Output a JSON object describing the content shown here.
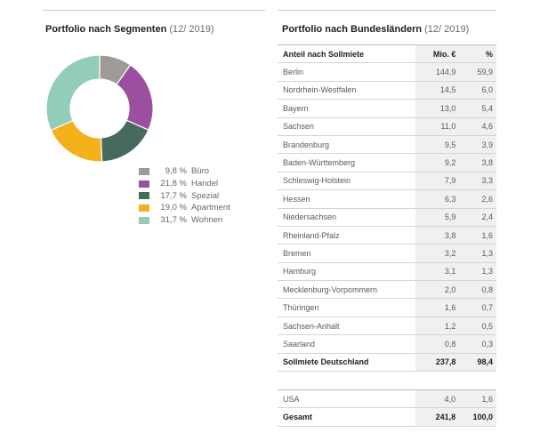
{
  "left_panel": {
    "title": "Portfolio nach Segmenten",
    "date": "(12/ 2019)"
  },
  "chart_data": {
    "type": "pie",
    "variant": "donut",
    "title": "Portfolio nach Segmenten (12/ 2019)",
    "start": "top",
    "direction": "clockwise",
    "legend_placement": "bottom-right",
    "slices": [
      {
        "label": "Büro",
        "value": 9.8,
        "display": "9,8 %",
        "color": "#a09a96"
      },
      {
        "label": "Handel",
        "value": 21.8,
        "display": "21,8 %",
        "color": "#9b4f9f"
      },
      {
        "label": "Spezial",
        "value": 17.7,
        "display": "17,7 %",
        "color": "#466b5c"
      },
      {
        "label": "Apartment",
        "value": 19.0,
        "display": "19,0 %",
        "color": "#f3b21b"
      },
      {
        "label": "Wohnen",
        "value": 31.7,
        "display": "31,7 %",
        "color": "#93cdb8"
      }
    ]
  },
  "right_panel": {
    "title": "Portfolio nach Bundesländern",
    "date": "(12/ 2019)",
    "header": {
      "name": "Anteil nach Sollmiete",
      "mio": "Mio. €",
      "pct": "%"
    },
    "rows": [
      {
        "name": "Berlin",
        "mio": "144,9",
        "pct": "59,9"
      },
      {
        "name": "Nordrhein-Westfalen",
        "mio": "14,5",
        "pct": "6,0"
      },
      {
        "name": "Bayern",
        "mio": "13,0",
        "pct": "5,4"
      },
      {
        "name": "Sachsen",
        "mio": "11,0",
        "pct": "4,6"
      },
      {
        "name": "Brandenburg",
        "mio": "9,5",
        "pct": "3,9"
      },
      {
        "name": "Baden-Württemberg",
        "mio": "9,2",
        "pct": "3,8"
      },
      {
        "name": "Schleswig-Holstein",
        "mio": "7,9",
        "pct": "3,3"
      },
      {
        "name": "Hessen",
        "mio": "6,3",
        "pct": "2,6"
      },
      {
        "name": "Niedersachsen",
        "mio": "5,9",
        "pct": "2,4"
      },
      {
        "name": "Rheinland-Pfalz",
        "mio": "3,8",
        "pct": "1,6"
      },
      {
        "name": "Bremen",
        "mio": "3,2",
        "pct": "1,3"
      },
      {
        "name": "Hamburg",
        "mio": "3,1",
        "pct": "1,3"
      },
      {
        "name": "Mecklenburg-Vorpommern",
        "mio": "2,0",
        "pct": "0,8"
      },
      {
        "name": "Thüringen",
        "mio": "1,6",
        "pct": "0,7"
      },
      {
        "name": "Sachsen-Anhalt",
        "mio": "1,2",
        "pct": "0,5"
      },
      {
        "name": "Saarland",
        "mio": "0,8",
        "pct": "0,3"
      }
    ],
    "subtotal": {
      "name": "Sollmiete Deutschland",
      "mio": "237,8",
      "pct": "98,4"
    },
    "foreign": {
      "name": "USA",
      "mio": "4,0",
      "pct": "1,6"
    },
    "total": {
      "name": "Gesamt",
      "mio": "241,8",
      "pct": "100,0"
    }
  }
}
